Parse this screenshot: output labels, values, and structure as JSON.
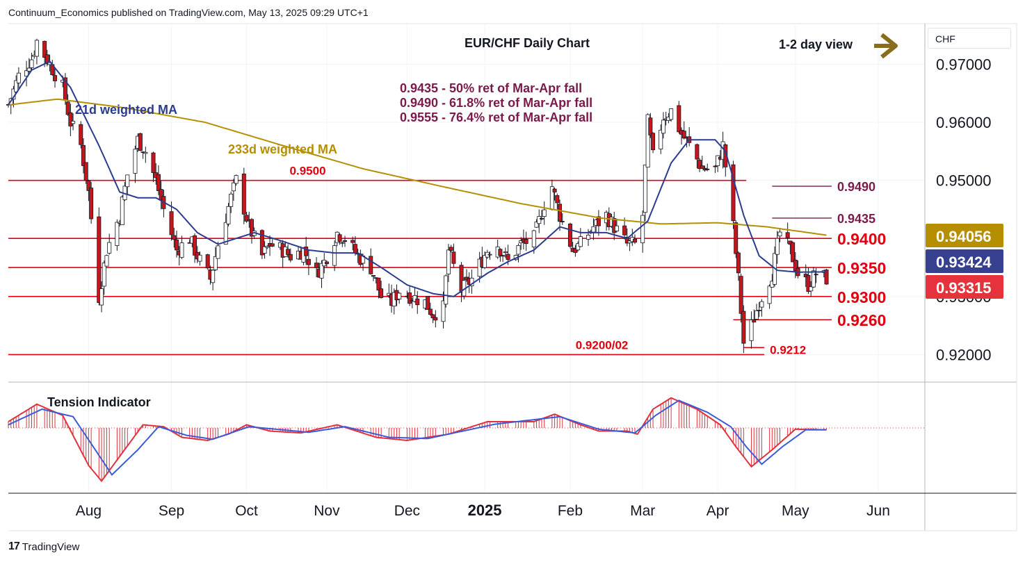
{
  "header": {
    "published_text": "Continuum_Economics published on TradingView.com, May 13, 2025 09:29 UTC+1"
  },
  "footer": {
    "brand": "TradingView",
    "brand_mark": "17"
  },
  "currency_box": "CHF",
  "colors": {
    "up": "#ffffff",
    "down": "#c4161c",
    "wick": "#131722",
    "ma21": "#2b3b8f",
    "ma233": "#b58f00",
    "hline": "#e0000f",
    "fib": "#7a1a4a",
    "arrow": "#8a6d1c",
    "badge_ma233": "#b58f00",
    "badge_ma21": "#36408f",
    "badge_last": "#e6323c",
    "tension_fill": "#e0323c",
    "tension_fast": "#e0323c",
    "tension_slow": "#3a5bd9"
  },
  "chart_data": {
    "type": "candlestick",
    "title": "EUR/CHF Daily Chart",
    "subtitle": "1-2 day view",
    "currency": "CHF",
    "y_ticks": [
      "0.97000",
      "0.96000",
      "0.95000",
      "0.93000",
      "0.92000"
    ],
    "y_tick_values": [
      0.97,
      0.96,
      0.95,
      0.93,
      0.92
    ],
    "ylim": [
      0.9155,
      0.977
    ],
    "x_ticks": [
      {
        "label": "Aug",
        "date": "2024-08-01"
      },
      {
        "label": "Sep",
        "date": "2024-09-02"
      },
      {
        "label": "Oct",
        "date": "2024-10-01"
      },
      {
        "label": "Nov",
        "date": "2024-11-01"
      },
      {
        "label": "Dec",
        "date": "2024-12-02"
      },
      {
        "label": "2025",
        "date": "2025-01-01",
        "bold": true
      },
      {
        "label": "Feb",
        "date": "2025-02-03"
      },
      {
        "label": "Mar",
        "date": "2025-03-03"
      },
      {
        "label": "Apr",
        "date": "2025-04-01"
      },
      {
        "label": "May",
        "date": "2025-05-01"
      },
      {
        "label": "Jun",
        "date": "2025-06-02"
      }
    ],
    "x_range": [
      "2024-07-01",
      "2025-06-20"
    ],
    "price_badges": [
      {
        "label": "0.94056",
        "value": 0.94056,
        "role": "233d weighted MA"
      },
      {
        "label": "0.93424",
        "value": 0.93424,
        "role": "21d weighted MA"
      },
      {
        "label": "0.93315",
        "value": 0.93315,
        "role": "last price"
      }
    ],
    "horizontal_levels": [
      {
        "label": "0.9500",
        "value": 0.95,
        "from": "2024-07-01",
        "to": "2025-04-12",
        "label_pos": "mid"
      },
      {
        "label": "0.9400",
        "value": 0.94,
        "from": "2024-07-01",
        "to": "2025-05-15",
        "label_pos": "right"
      },
      {
        "label": "0.9350",
        "value": 0.935,
        "from": "2024-07-01",
        "to": "2025-05-15",
        "label_pos": "right"
      },
      {
        "label": "0.9300",
        "value": 0.93,
        "from": "2024-07-01",
        "to": "2025-05-15",
        "label_pos": "right"
      },
      {
        "label": "0.9260",
        "value": 0.926,
        "from": "2025-04-07",
        "to": "2025-05-15",
        "label_pos": "right"
      },
      {
        "label": "0.9200/02",
        "value": 0.92,
        "from": "2024-07-01",
        "to": "2025-04-19",
        "label_pos": "mid"
      },
      {
        "label": "0.9212",
        "value": 0.9212,
        "from": "2025-04-11",
        "to": "2025-04-19",
        "label_pos": "right"
      }
    ],
    "fib_levels": [
      {
        "label": "0.9490",
        "value": 0.949,
        "from": "2025-04-22",
        "to": "2025-05-15"
      },
      {
        "label": "0.9435",
        "value": 0.9435,
        "from": "2025-04-22",
        "to": "2025-05-15"
      }
    ],
    "annotations": [
      "0.9435 - 50% ret of Mar-Apr fall",
      "0.9490 - 61.8% ret of Mar-Apr fall",
      "0.9555 - 76.4% ret of Mar-Apr fall"
    ],
    "series_labels": {
      "ma21": "21d weighted MA",
      "ma233": "233d weighted MA",
      "tension": "Tension Indicator"
    },
    "price_anchors": [
      [
        "2024-07-01",
        0.963
      ],
      [
        "2024-07-05",
        0.968
      ],
      [
        "2024-07-10",
        0.971
      ],
      [
        "2024-07-12",
        0.974
      ],
      [
        "2024-07-17",
        0.97
      ],
      [
        "2024-07-22",
        0.966
      ],
      [
        "2024-07-25",
        0.96
      ],
      [
        "2024-07-29",
        0.956
      ],
      [
        "2024-08-01",
        0.948
      ],
      [
        "2024-08-05",
        0.93
      ],
      [
        "2024-08-08",
        0.938
      ],
      [
        "2024-08-13",
        0.944
      ],
      [
        "2024-08-16",
        0.951
      ],
      [
        "2024-08-20",
        0.957
      ],
      [
        "2024-08-23",
        0.955
      ],
      [
        "2024-08-27",
        0.95
      ],
      [
        "2024-08-30",
        0.945
      ],
      [
        "2024-09-04",
        0.938
      ],
      [
        "2024-09-09",
        0.94
      ],
      [
        "2024-09-12",
        0.937
      ],
      [
        "2024-09-17",
        0.933
      ],
      [
        "2024-09-20",
        0.939
      ],
      [
        "2024-09-25",
        0.947
      ],
      [
        "2024-09-27",
        0.95
      ],
      [
        "2024-10-02",
        0.942
      ],
      [
        "2024-10-07",
        0.937
      ],
      [
        "2024-10-10",
        0.939
      ],
      [
        "2024-10-15",
        0.938
      ],
      [
        "2024-10-18",
        0.937
      ],
      [
        "2024-10-23",
        0.938
      ],
      [
        "2024-10-28",
        0.934
      ],
      [
        "2024-10-31",
        0.936
      ],
      [
        "2024-11-05",
        0.941
      ],
      [
        "2024-11-08",
        0.94
      ],
      [
        "2024-11-13",
        0.937
      ],
      [
        "2024-11-18",
        0.935
      ],
      [
        "2024-11-22",
        0.93
      ],
      [
        "2024-11-26",
        0.929
      ],
      [
        "2024-11-29",
        0.931
      ],
      [
        "2024-12-04",
        0.93
      ],
      [
        "2024-12-09",
        0.929
      ],
      [
        "2024-12-12",
        0.927
      ],
      [
        "2024-12-16",
        0.928
      ],
      [
        "2024-12-18",
        0.938
      ],
      [
        "2024-12-23",
        0.931
      ],
      [
        "2024-12-27",
        0.933
      ],
      [
        "2025-01-02",
        0.938
      ],
      [
        "2025-01-06",
        0.939
      ],
      [
        "2025-01-10",
        0.936
      ],
      [
        "2025-01-15",
        0.939
      ],
      [
        "2025-01-20",
        0.94
      ],
      [
        "2025-01-24",
        0.946
      ],
      [
        "2025-01-27",
        0.949
      ],
      [
        "2025-01-30",
        0.944
      ],
      [
        "2025-02-04",
        0.938
      ],
      [
        "2025-02-07",
        0.939
      ],
      [
        "2025-02-12",
        0.942
      ],
      [
        "2025-02-17",
        0.944
      ],
      [
        "2025-02-20",
        0.942
      ],
      [
        "2025-02-25",
        0.939
      ],
      [
        "2025-02-28",
        0.939
      ],
      [
        "2025-03-03",
        0.944
      ],
      [
        "2025-03-05",
        0.96
      ],
      [
        "2025-03-07",
        0.954
      ],
      [
        "2025-03-11",
        0.961
      ],
      [
        "2025-03-14",
        0.962
      ],
      [
        "2025-03-18",
        0.958
      ],
      [
        "2025-03-21",
        0.956
      ],
      [
        "2025-03-26",
        0.952
      ],
      [
        "2025-03-31",
        0.952
      ],
      [
        "2025-04-03",
        0.956
      ],
      [
        "2025-04-07",
        0.942
      ],
      [
        "2025-04-09",
        0.933
      ],
      [
        "2025-04-11",
        0.922
      ],
      [
        "2025-04-14",
        0.925
      ],
      [
        "2025-04-17",
        0.929
      ],
      [
        "2025-04-22",
        0.934
      ],
      [
        "2025-04-25",
        0.941
      ],
      [
        "2025-04-29",
        0.938
      ],
      [
        "2025-05-02",
        0.934
      ],
      [
        "2025-05-06",
        0.932
      ],
      [
        "2025-05-09",
        0.934
      ],
      [
        "2025-05-13",
        0.9331
      ]
    ],
    "ma21_anchors": [
      [
        "2024-07-01",
        0.963
      ],
      [
        "2024-07-10",
        0.969
      ],
      [
        "2024-07-17",
        0.9705
      ],
      [
        "2024-07-25",
        0.966
      ],
      [
        "2024-08-05",
        0.956
      ],
      [
        "2024-08-13",
        0.948
      ],
      [
        "2024-08-20",
        0.947
      ],
      [
        "2024-08-27",
        0.947
      ],
      [
        "2024-09-04",
        0.945
      ],
      [
        "2024-09-12",
        0.941
      ],
      [
        "2024-09-20",
        0.939
      ],
      [
        "2024-09-27",
        0.94
      ],
      [
        "2024-10-04",
        0.941
      ],
      [
        "2024-10-15",
        0.9395
      ],
      [
        "2024-10-25",
        0.938
      ],
      [
        "2024-11-04",
        0.9375
      ],
      [
        "2024-11-13",
        0.9375
      ],
      [
        "2024-11-22",
        0.935
      ],
      [
        "2024-12-02",
        0.932
      ],
      [
        "2024-12-12",
        0.9305
      ],
      [
        "2024-12-20",
        0.93
      ],
      [
        "2025-01-02",
        0.934
      ],
      [
        "2025-01-10",
        0.936
      ],
      [
        "2025-01-20",
        0.938
      ],
      [
        "2025-01-30",
        0.942
      ],
      [
        "2025-02-07",
        0.941
      ],
      [
        "2025-02-17",
        0.941
      ],
      [
        "2025-02-25",
        0.94
      ],
      [
        "2025-03-05",
        0.943
      ],
      [
        "2025-03-14",
        0.953
      ],
      [
        "2025-03-21",
        0.957
      ],
      [
        "2025-03-31",
        0.957
      ],
      [
        "2025-04-04",
        0.955
      ],
      [
        "2025-04-11",
        0.944
      ],
      [
        "2025-04-17",
        0.937
      ],
      [
        "2025-04-24",
        0.9345
      ],
      [
        "2025-05-02",
        0.9342
      ],
      [
        "2025-05-13",
        0.93424
      ]
    ],
    "ma233_anchors": [
      [
        "2024-07-01",
        0.963
      ],
      [
        "2024-07-20",
        0.964
      ],
      [
        "2024-08-15",
        0.9625
      ],
      [
        "2024-09-15",
        0.96
      ],
      [
        "2024-10-15",
        0.956
      ],
      [
        "2024-11-15",
        0.952
      ],
      [
        "2024-12-15",
        0.949
      ],
      [
        "2025-01-15",
        0.946
      ],
      [
        "2025-02-15",
        0.9435
      ],
      [
        "2025-03-10",
        0.9425
      ],
      [
        "2025-04-01",
        0.9427
      ],
      [
        "2025-04-20",
        0.942
      ],
      [
        "2025-05-13",
        0.94056
      ]
    ],
    "tension_fast_anchors": [
      [
        "2024-07-01",
        0.1
      ],
      [
        "2024-07-12",
        0.38
      ],
      [
        "2024-07-22",
        0.2
      ],
      [
        "2024-08-01",
        -0.6
      ],
      [
        "2024-08-06",
        -0.85
      ],
      [
        "2024-08-14",
        -0.4
      ],
      [
        "2024-08-22",
        0.05
      ],
      [
        "2024-08-30",
        0.02
      ],
      [
        "2024-09-06",
        -0.15
      ],
      [
        "2024-09-16",
        -0.2
      ],
      [
        "2024-09-24",
        -0.1
      ],
      [
        "2024-10-01",
        0.05
      ],
      [
        "2024-10-10",
        -0.05
      ],
      [
        "2024-10-22",
        -0.08
      ],
      [
        "2024-11-05",
        0.05
      ],
      [
        "2024-11-20",
        -0.15
      ],
      [
        "2024-12-02",
        -0.2
      ],
      [
        "2024-12-18",
        -0.1
      ],
      [
        "2025-01-02",
        0.1
      ],
      [
        "2025-01-20",
        0.1
      ],
      [
        "2025-01-28",
        0.22
      ],
      [
        "2025-02-07",
        0.05
      ],
      [
        "2025-02-14",
        -0.05
      ],
      [
        "2025-02-25",
        -0.05
      ],
      [
        "2025-03-01",
        -0.1
      ],
      [
        "2025-03-07",
        0.3
      ],
      [
        "2025-03-14",
        0.48
      ],
      [
        "2025-03-24",
        0.3
      ],
      [
        "2025-04-02",
        0.05
      ],
      [
        "2025-04-08",
        -0.3
      ],
      [
        "2025-04-14",
        -0.62
      ],
      [
        "2025-04-22",
        -0.35
      ],
      [
        "2025-05-01",
        -0.02
      ],
      [
        "2025-05-13",
        -0.03
      ]
    ],
    "tension_slow_anchors": [
      [
        "2024-07-01",
        0.05
      ],
      [
        "2024-07-14",
        0.3
      ],
      [
        "2024-07-26",
        0.18
      ],
      [
        "2024-08-06",
        -0.5
      ],
      [
        "2024-08-10",
        -0.75
      ],
      [
        "2024-08-20",
        -0.35
      ],
      [
        "2024-08-28",
        0.02
      ],
      [
        "2024-09-08",
        -0.12
      ],
      [
        "2024-09-18",
        -0.18
      ],
      [
        "2024-10-02",
        0.02
      ],
      [
        "2024-10-25",
        -0.07
      ],
      [
        "2024-11-08",
        0.02
      ],
      [
        "2024-11-25",
        -0.15
      ],
      [
        "2024-12-10",
        -0.17
      ],
      [
        "2025-01-05",
        0.06
      ],
      [
        "2025-01-30",
        0.18
      ],
      [
        "2025-02-14",
        -0.02
      ],
      [
        "2025-02-28",
        -0.08
      ],
      [
        "2025-03-08",
        0.2
      ],
      [
        "2025-03-17",
        0.44
      ],
      [
        "2025-03-28",
        0.25
      ],
      [
        "2025-04-06",
        0.02
      ],
      [
        "2025-04-12",
        -0.3
      ],
      [
        "2025-04-18",
        -0.58
      ],
      [
        "2025-04-26",
        -0.3
      ],
      [
        "2025-05-05",
        -0.03
      ],
      [
        "2025-05-13",
        -0.03
      ]
    ]
  }
}
